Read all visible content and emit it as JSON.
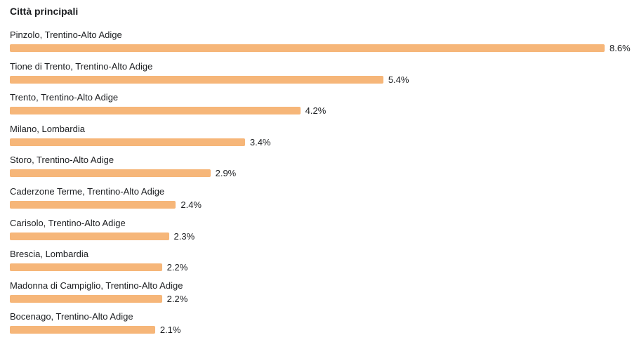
{
  "colors": {
    "bar": "#f6b679"
  },
  "chart_data": {
    "type": "bar",
    "orientation": "horizontal",
    "title": "Città principali",
    "categories": [
      "Pinzolo, Trentino-Alto Adige",
      "Tione di Trento, Trentino-Alto Adige",
      "Trento, Trentino-Alto Adige",
      "Milano, Lombardia",
      "Storo, Trentino-Alto Adige",
      "Caderzone Terme, Trentino-Alto Adige",
      "Carisolo, Trentino-Alto Adige",
      "Brescia, Lombardia",
      "Madonna di Campiglio, Trentino-Alto Adige",
      "Bocenago, Trentino-Alto Adige"
    ],
    "values": [
      8.6,
      5.4,
      4.2,
      3.4,
      2.9,
      2.4,
      2.3,
      2.2,
      2.2,
      2.1
    ],
    "value_labels": [
      "8.6%",
      "5.4%",
      "4.2%",
      "3.4%",
      "2.9%",
      "2.4%",
      "2.3%",
      "2.2%",
      "2.2%",
      "2.1%"
    ],
    "xlim": [
      0,
      8.6
    ],
    "grid": false,
    "legend": "none"
  }
}
